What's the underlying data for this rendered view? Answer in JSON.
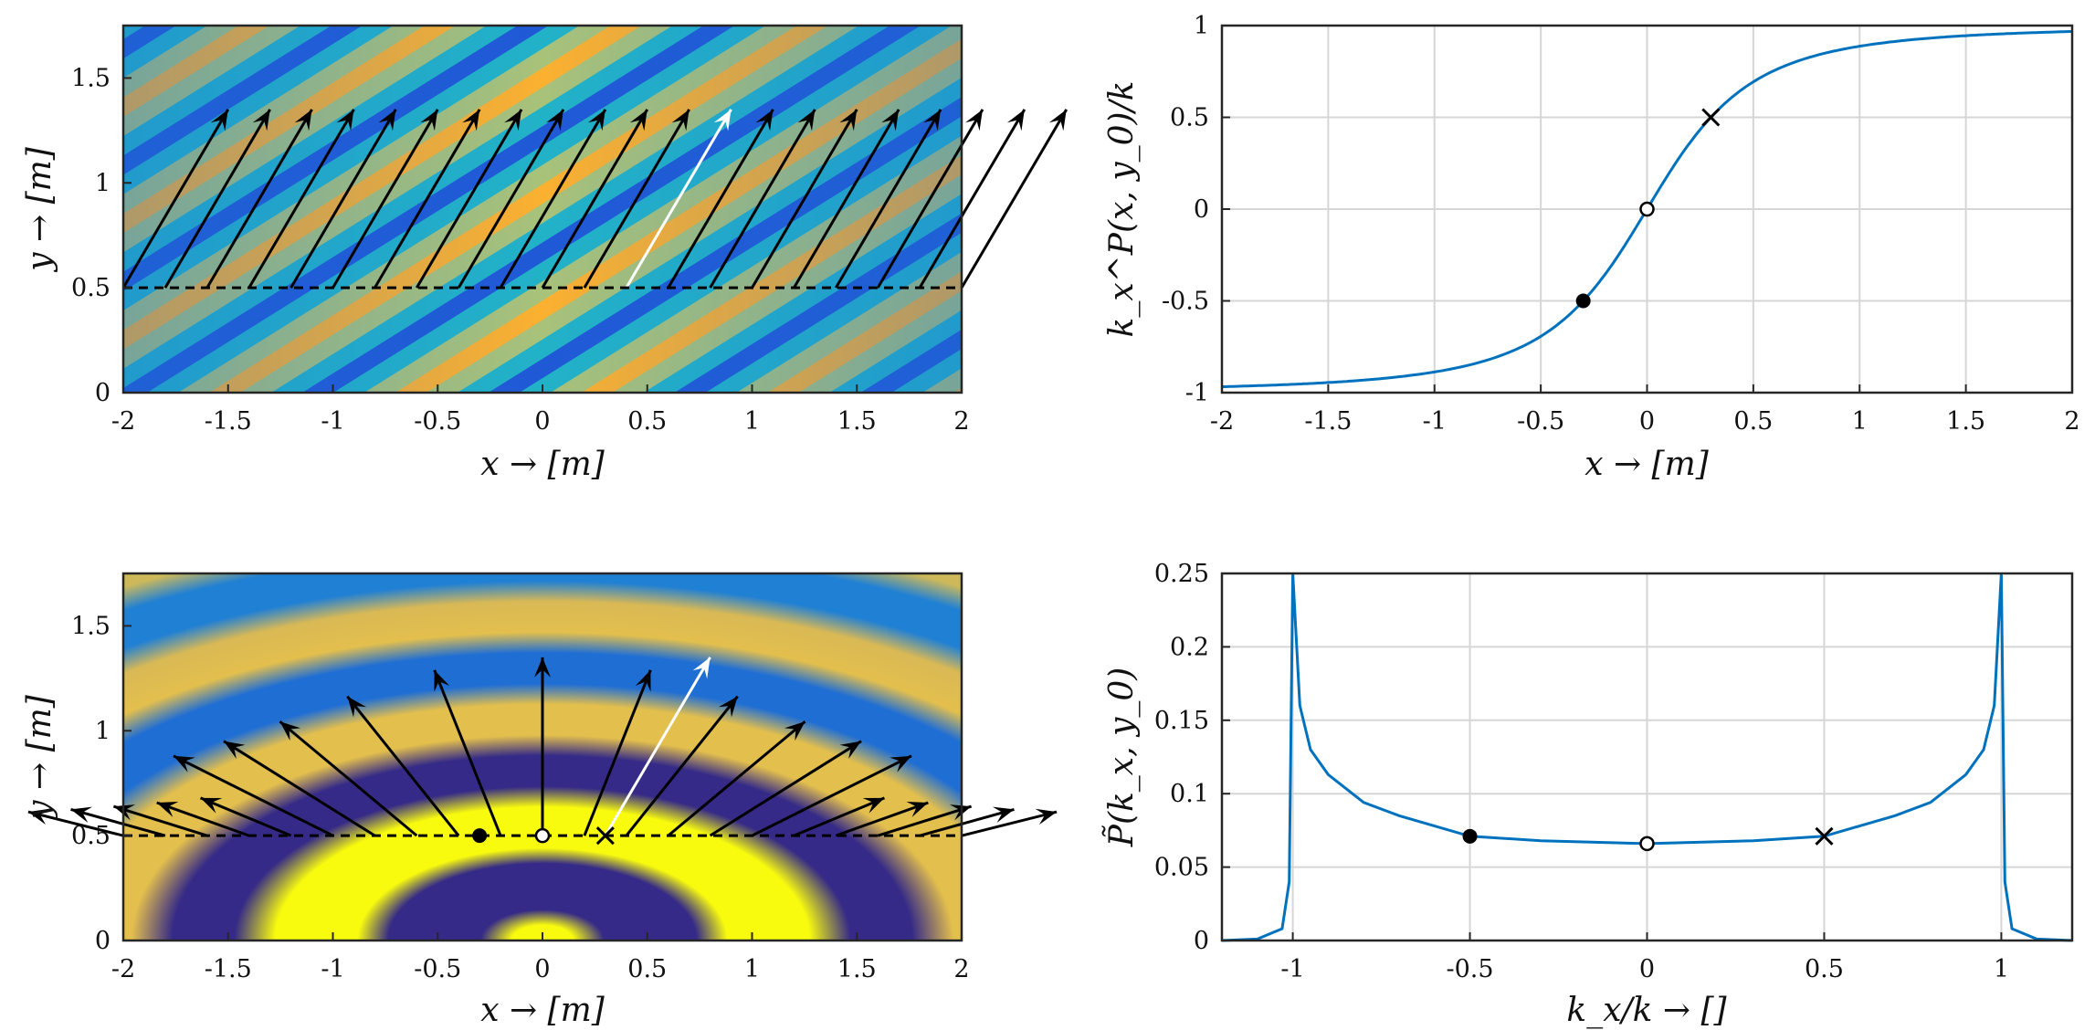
{
  "chart_data": [
    {
      "type": "heatmap",
      "panel": "plane-wave-field",
      "xlabel": "x → [m]",
      "ylabel": "y → [m]",
      "xlim": [
        -2,
        2
      ],
      "ylim": [
        0,
        1.75
      ],
      "xticks": [
        "-2",
        "-1.5",
        "-1",
        "-0.5",
        "0",
        "0.5",
        "1",
        "1.5",
        "2"
      ],
      "yticks": [
        "0",
        "0.5",
        "1",
        "1.5"
      ],
      "reference_line_y": 0.5,
      "arrow_tips_y": 1.35,
      "arrow_start_x": [
        -2.0,
        -1.8,
        -1.6,
        -1.4,
        -1.2,
        -1.0,
        -0.8,
        -0.6,
        -0.4,
        -0.2,
        0.0,
        0.2,
        0.4,
        0.6,
        0.8,
        1.0,
        1.2,
        1.4,
        1.6,
        1.8,
        2.0
      ],
      "highlighted_arrow": {
        "x0": 0.4,
        "y0": 0.5,
        "x1": 0.9,
        "y1": 1.35,
        "color": "#ffffff"
      },
      "colormap": [
        "#2059d6",
        "#22b2c8",
        "#e6c24a",
        "#fbb030"
      ]
    },
    {
      "type": "line",
      "panel": "local-wavenumber",
      "xlabel": "x → [m]",
      "ylabel": "k_x^P(x, y_0)/k",
      "xlim": [
        -2,
        2
      ],
      "ylim": [
        -1,
        1
      ],
      "xticks": [
        "-2",
        "-1.5",
        "-1",
        "-0.5",
        "0",
        "0.5",
        "1",
        "1.5",
        "2"
      ],
      "yticks": [
        "-1",
        "-0.5",
        "0",
        "0.5",
        "1"
      ],
      "series": [
        {
          "x": [
            -2,
            -1.5,
            -1,
            -0.5,
            -0.3,
            0,
            0.3,
            0.5,
            1,
            1.5,
            2
          ],
          "y": [
            -0.971,
            -0.949,
            -0.894,
            -0.707,
            -0.514,
            0,
            0.514,
            0.707,
            0.894,
            0.949,
            0.971
          ]
        }
      ],
      "markers": [
        {
          "x": -0.3,
          "y": -0.5,
          "style": "filled-circle"
        },
        {
          "x": 0,
          "y": 0,
          "style": "open-circle"
        },
        {
          "x": 0.3,
          "y": 0.5,
          "style": "cross"
        }
      ],
      "color": "#0072bd",
      "grid": true
    },
    {
      "type": "heatmap",
      "panel": "point-source-field",
      "xlabel": "x → [m]",
      "ylabel": "y → [m]",
      "xlim": [
        -2,
        2
      ],
      "ylim": [
        0,
        1.75
      ],
      "xticks": [
        "-2",
        "-1.5",
        "-1",
        "-0.5",
        "0",
        "0.5",
        "1",
        "1.5",
        "2"
      ],
      "yticks": [
        "0",
        "0.5",
        "1",
        "1.5"
      ],
      "source_position": {
        "x": 0,
        "y": 0
      },
      "reference_line_y": 0.5,
      "arrow_start_x": [
        -2.0,
        -1.8,
        -1.6,
        -1.4,
        -1.2,
        -1.0,
        -0.8,
        -0.6,
        -0.4,
        -0.2,
        0.0,
        0.2,
        0.4,
        0.6,
        0.8,
        1.0,
        1.2,
        1.4,
        1.6,
        1.8,
        2.0
      ],
      "highlighted_arrow": {
        "x0": 0.3,
        "y0": 0.5,
        "x1": 0.8,
        "y1": 1.35,
        "color": "#ffffff"
      },
      "markers": [
        {
          "x": -0.3,
          "y": 0.5,
          "style": "filled-circle"
        },
        {
          "x": 0,
          "y": 0.5,
          "style": "open-circle"
        },
        {
          "x": 0.3,
          "y": 0.5,
          "style": "cross"
        }
      ],
      "colormap": [
        "#352a87",
        "#1f6ed4",
        "#20b2c8",
        "#86bf7e",
        "#e3bf4d",
        "#f9fb0e"
      ]
    },
    {
      "type": "line",
      "panel": "angular-spectrum",
      "xlabel": "k_x/k → []",
      "ylabel": "P̃(k_x, y_0)",
      "xlim": [
        -1.2,
        1.2
      ],
      "ylim": [
        0,
        0.25
      ],
      "xticks": [
        "-1",
        "-0.5",
        "0",
        "0.5",
        "1"
      ],
      "yticks": [
        "0",
        "0.05",
        "0.1",
        "0.15",
        "0.2",
        "0.25"
      ],
      "series": [
        {
          "x": [
            -1.2,
            -1.1,
            -1.03,
            -1.01,
            -1.0,
            -0.98,
            -0.95,
            -0.9,
            -0.8,
            -0.7,
            -0.5,
            -0.3,
            0,
            0.3,
            0.5,
            0.7,
            0.8,
            0.9,
            0.95,
            0.98,
            1.0,
            1.01,
            1.03,
            1.1,
            1.2
          ],
          "y": [
            0,
            0.001,
            0.008,
            0.04,
            0.25,
            0.16,
            0.13,
            0.113,
            0.094,
            0.085,
            0.071,
            0.068,
            0.066,
            0.068,
            0.071,
            0.085,
            0.094,
            0.113,
            0.13,
            0.16,
            0.25,
            0.04,
            0.008,
            0.001,
            0
          ]
        }
      ],
      "markers": [
        {
          "x": -0.5,
          "y": 0.071,
          "style": "filled-circle"
        },
        {
          "x": 0,
          "y": 0.066,
          "style": "open-circle"
        },
        {
          "x": 0.5,
          "y": 0.071,
          "style": "cross"
        }
      ],
      "color": "#0072bd",
      "grid": true
    }
  ]
}
